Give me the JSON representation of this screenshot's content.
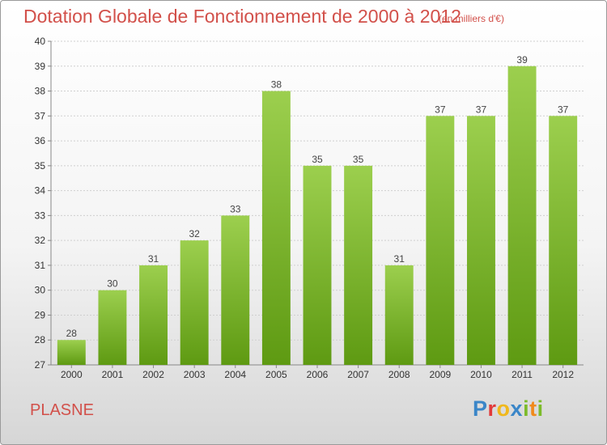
{
  "header": {
    "title": "Dotation Globale de Fonctionnement de 2000 à 2012",
    "unit": "(en milliers d'€)"
  },
  "footer": {
    "commune": "PLASNE",
    "logo_letters": [
      {
        "ch": "P",
        "color": "#3a86c8"
      },
      {
        "ch": "r",
        "color": "#e23a3a"
      },
      {
        "ch": "o",
        "color": "#f0b81c"
      },
      {
        "ch": "x",
        "color": "#3a86c8"
      },
      {
        "ch": "i",
        "color": "#7cbb2a"
      },
      {
        "ch": "t",
        "color": "#f08a1c"
      },
      {
        "ch": "i",
        "color": "#7cbb2a"
      }
    ]
  },
  "chart_data": {
    "type": "bar",
    "categories": [
      "2000",
      "2001",
      "2002",
      "2003",
      "2004",
      "2005",
      "2006",
      "2007",
      "2008",
      "2009",
      "2010",
      "2011",
      "2012"
    ],
    "values": [
      28,
      30,
      31,
      32,
      33,
      38,
      35,
      35,
      31,
      37,
      37,
      39,
      37
    ],
    "ylim": [
      27,
      40
    ],
    "yticks": [
      27,
      28,
      29,
      30,
      31,
      32,
      33,
      34,
      35,
      36,
      37,
      38,
      39,
      40
    ],
    "grid": true,
    "colors": {
      "bar_top": "#9ccf4e",
      "bar_bottom": "#5e9a12",
      "grid": "#cfcfcf",
      "axis": "#888888"
    }
  }
}
